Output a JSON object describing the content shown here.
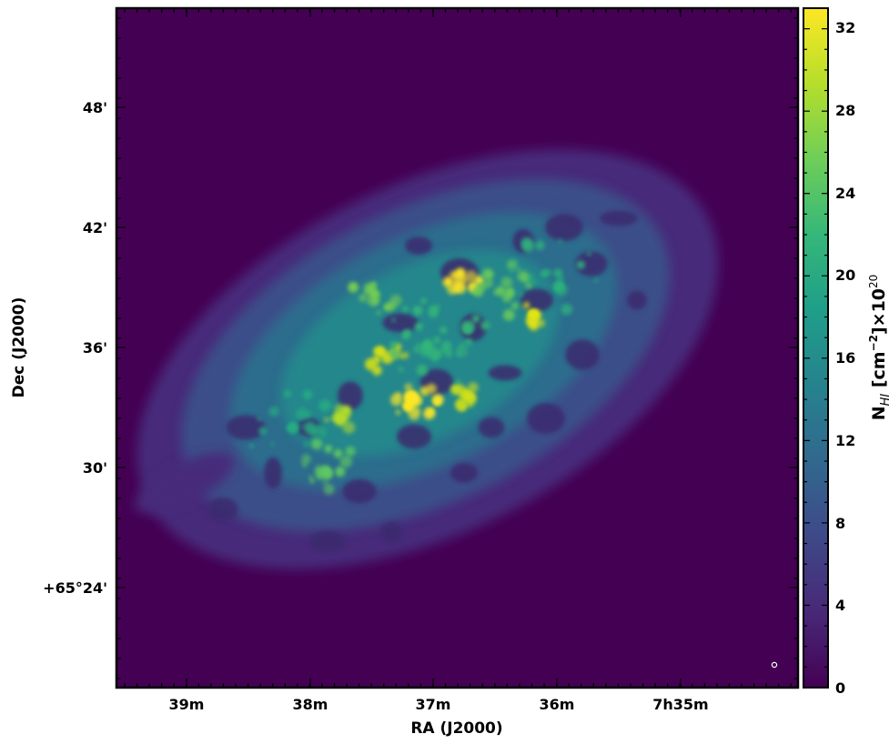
{
  "chart_data": {
    "type": "heatmap",
    "title": "",
    "xlabel": "RA (J2000)",
    "ylabel": "Dec (J2000)",
    "x_ticks": [
      "39m",
      "38m",
      "37m",
      "36m",
      "7h35m"
    ],
    "y_ticks": [
      "48'",
      "42'",
      "36'",
      "30'",
      "+65°24'"
    ],
    "colorbar": {
      "label_main": "N",
      "label_sub": "HI",
      "label_rest": " [cm",
      "label_exp1": "−2",
      "label_mid": "]×10",
      "label_exp2": "20",
      "ticks": [
        "0",
        "4",
        "8",
        "12",
        "16",
        "20",
        "24",
        "28",
        "32"
      ],
      "range": [
        0,
        33
      ],
      "colormap": "viridis",
      "colors": [
        "#440154",
        "#482878",
        "#3e4989",
        "#31688e",
        "#26828e",
        "#1f9e89",
        "#35b779",
        "#6ece58",
        "#b5de2b",
        "#fde725"
      ]
    },
    "background_color": "#440154",
    "features": [
      {
        "ra": "37m05s",
        "dec": "+65°34'",
        "value": 32
      },
      {
        "ra": "36m45s",
        "dec": "+65°39'",
        "value": 30
      },
      {
        "ra": "36m15s",
        "dec": "+65°37'",
        "value": 28
      },
      {
        "ra": "37m25s",
        "dec": "+65°36'",
        "value": 27
      },
      {
        "ra": "37m50s",
        "dec": "+65°32'",
        "value": 24
      },
      {
        "ra": "36m40s",
        "dec": "+65°34'",
        "value": 25
      }
    ]
  }
}
